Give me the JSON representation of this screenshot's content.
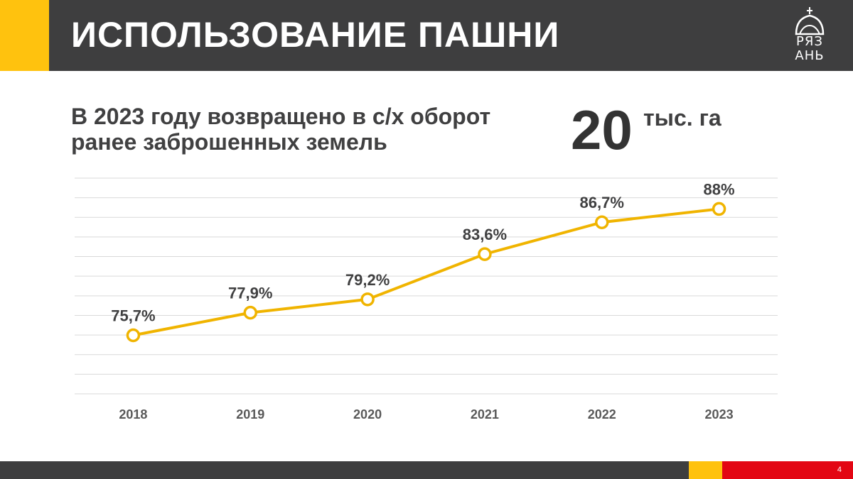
{
  "header": {
    "title": "ИСПОЛЬЗОВАНИЕ ПАШНИ",
    "logo_text": [
      "РЯЗ",
      "АНЬ"
    ]
  },
  "headline": {
    "text": "В 2023 году возвращено в с/х оборот ранее заброшенных земель",
    "value": "20",
    "unit": "тыс. га"
  },
  "chart_data": {
    "type": "line",
    "title": "",
    "xlabel": "",
    "ylabel": "",
    "categories": [
      "2018",
      "2019",
      "2020",
      "2021",
      "2022",
      "2023"
    ],
    "values": [
      75.7,
      77.9,
      79.2,
      83.6,
      86.7,
      88
    ],
    "data_labels": [
      "75,7%",
      "77,9%",
      "79,2%",
      "83,6%",
      "86,7%",
      "88%"
    ],
    "unit": "%",
    "ylim": [
      70,
      91
    ],
    "grid": true,
    "legend": "none",
    "color": "#f0b400"
  },
  "footer": {
    "page_number": "4"
  },
  "colors": {
    "header_bg": "#3e3e3f",
    "accent_yellow": "#ffc20e",
    "accent_red": "#e30613",
    "line": "#f0b400"
  }
}
